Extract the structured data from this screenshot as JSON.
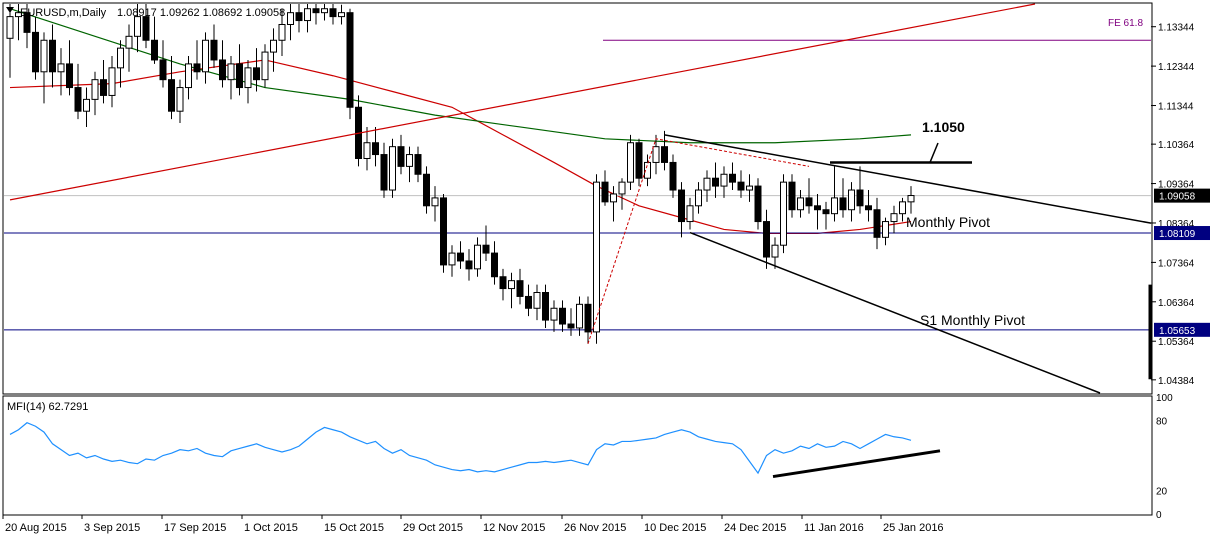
{
  "chart_data": {
    "type": "candlestick",
    "header": {
      "symbol_line": "EURUSD,m,Daily",
      "ohlc": "1.08917 1.09262 1.08692 1.09058"
    },
    "y_axis": {
      "range": [
        1.0405,
        1.1392
      ],
      "ticks": [
        {
          "value": 1.13344,
          "label": "1.13344"
        },
        {
          "value": 1.12344,
          "label": "1.12344"
        },
        {
          "value": 1.11344,
          "label": "1.11344"
        },
        {
          "value": 1.10364,
          "label": "1.10364"
        },
        {
          "value": 1.09364,
          "label": "1.09364"
        },
        {
          "value": 1.08364,
          "label": "1.08364"
        },
        {
          "value": 1.07364,
          "label": "1.07364"
        },
        {
          "value": 1.06364,
          "label": "1.06364"
        },
        {
          "value": 1.05364,
          "label": "1.05364"
        },
        {
          "value": 1.04384,
          "label": "1.04384"
        }
      ],
      "badges": [
        {
          "value": 1.09058,
          "label": "1.09058",
          "style": "current"
        },
        {
          "value": 1.08109,
          "label": "1.08109",
          "style": "level"
        },
        {
          "value": 1.05653,
          "label": "1.05653",
          "style": "level"
        }
      ]
    },
    "x_axis": {
      "labels": [
        "20 Aug 2015",
        "3 Sep 2015",
        "17 Sep 2015",
        "1 Oct 2015",
        "15 Oct 2015",
        "29 Oct 2015",
        "12 Nov 2015",
        "26 Nov 2015",
        "10 Dec 2015",
        "24 Dec 2015",
        "11 Jan 2016",
        "25 Jan 2016"
      ]
    },
    "candles": [
      [
        1.1305,
        1.1392,
        1.1205,
        1.136
      ],
      [
        1.136,
        1.1392,
        1.13,
        1.137
      ],
      [
        1.137,
        1.1392,
        1.128,
        1.132
      ],
      [
        1.132,
        1.136,
        1.12,
        1.122
      ],
      [
        1.122,
        1.132,
        1.114,
        1.13
      ],
      [
        1.13,
        1.134,
        1.118,
        1.122
      ],
      [
        1.122,
        1.128,
        1.116,
        1.124
      ],
      [
        1.124,
        1.13,
        1.116,
        1.118
      ],
      [
        1.118,
        1.124,
        1.11,
        1.112
      ],
      [
        1.112,
        1.118,
        1.108,
        1.115
      ],
      [
        1.115,
        1.122,
        1.111,
        1.12
      ],
      [
        1.12,
        1.125,
        1.114,
        1.116
      ],
      [
        1.116,
        1.126,
        1.113,
        1.123
      ],
      [
        1.123,
        1.13,
        1.118,
        1.128
      ],
      [
        1.128,
        1.134,
        1.122,
        1.131
      ],
      [
        1.131,
        1.1392,
        1.127,
        1.136
      ],
      [
        1.136,
        1.1392,
        1.128,
        1.13
      ],
      [
        1.13,
        1.136,
        1.124,
        1.125
      ],
      [
        1.125,
        1.13,
        1.118,
        1.12
      ],
      [
        1.12,
        1.126,
        1.11,
        1.112
      ],
      [
        1.112,
        1.12,
        1.109,
        1.118
      ],
      [
        1.118,
        1.126,
        1.115,
        1.124
      ],
      [
        1.124,
        1.13,
        1.12,
        1.122
      ],
      [
        1.122,
        1.132,
        1.119,
        1.13
      ],
      [
        1.13,
        1.134,
        1.123,
        1.125
      ],
      [
        1.125,
        1.13,
        1.118,
        1.12
      ],
      [
        1.12,
        1.126,
        1.115,
        1.124
      ],
      [
        1.124,
        1.129,
        1.116,
        1.118
      ],
      [
        1.118,
        1.125,
        1.114,
        1.123
      ],
      [
        1.123,
        1.128,
        1.117,
        1.12
      ],
      [
        1.12,
        1.129,
        1.118,
        1.127
      ],
      [
        1.127,
        1.133,
        1.122,
        1.13
      ],
      [
        1.13,
        1.138,
        1.126,
        1.134
      ],
      [
        1.134,
        1.1392,
        1.13,
        1.137
      ],
      [
        1.137,
        1.1392,
        1.132,
        1.135
      ],
      [
        1.135,
        1.1392,
        1.132,
        1.138
      ],
      [
        1.138,
        1.1392,
        1.134,
        1.137
      ],
      [
        1.137,
        1.1392,
        1.135,
        1.138
      ],
      [
        1.138,
        1.1392,
        1.134,
        1.136
      ],
      [
        1.136,
        1.139,
        1.134,
        1.137
      ],
      [
        1.137,
        1.138,
        1.11,
        1.113
      ],
      [
        1.113,
        1.116,
        1.098,
        1.1
      ],
      [
        1.1,
        1.108,
        1.097,
        1.104
      ],
      [
        1.104,
        1.108,
        1.098,
        1.101
      ],
      [
        1.101,
        1.104,
        1.09,
        1.092
      ],
      [
        1.092,
        1.105,
        1.09,
        1.103
      ],
      [
        1.103,
        1.106,
        1.096,
        1.098
      ],
      [
        1.098,
        1.103,
        1.094,
        1.101
      ],
      [
        1.101,
        1.103,
        1.094,
        1.096
      ],
      [
        1.096,
        1.098,
        1.086,
        1.088
      ],
      [
        1.088,
        1.093,
        1.084,
        1.09
      ],
      [
        1.09,
        1.091,
        1.071,
        1.073
      ],
      [
        1.073,
        1.078,
        1.07,
        1.076
      ],
      [
        1.076,
        1.079,
        1.072,
        1.074
      ],
      [
        1.074,
        1.077,
        1.069,
        1.072
      ],
      [
        1.072,
        1.08,
        1.07,
        1.078
      ],
      [
        1.078,
        1.083,
        1.074,
        1.076
      ],
      [
        1.076,
        1.079,
        1.068,
        1.07
      ],
      [
        1.07,
        1.072,
        1.064,
        1.067
      ],
      [
        1.067,
        1.071,
        1.062,
        1.069
      ],
      [
        1.069,
        1.072,
        1.063,
        1.065
      ],
      [
        1.065,
        1.068,
        1.06,
        1.062
      ],
      [
        1.062,
        1.068,
        1.059,
        1.066
      ],
      [
        1.066,
        1.068,
        1.057,
        1.059
      ],
      [
        1.059,
        1.064,
        1.056,
        1.062
      ],
      [
        1.062,
        1.064,
        1.056,
        1.058
      ],
      [
        1.058,
        1.062,
        1.055,
        1.057
      ],
      [
        1.057,
        1.065,
        1.055,
        1.063
      ],
      [
        1.063,
        1.065,
        1.053,
        1.056
      ],
      [
        1.056,
        1.096,
        1.053,
        1.094
      ],
      [
        1.094,
        1.097,
        1.088,
        1.089
      ],
      [
        1.089,
        1.093,
        1.084,
        1.091
      ],
      [
        1.091,
        1.095,
        1.087,
        1.094
      ],
      [
        1.094,
        1.106,
        1.092,
        1.104
      ],
      [
        1.104,
        1.105,
        1.093,
        1.095
      ],
      [
        1.095,
        1.101,
        1.093,
        1.099
      ],
      [
        1.099,
        1.106,
        1.096,
        1.103
      ],
      [
        1.103,
        1.107,
        1.097,
        1.099
      ],
      [
        1.099,
        1.101,
        1.09,
        1.092
      ],
      [
        1.092,
        1.094,
        1.08,
        1.084
      ],
      [
        1.084,
        1.09,
        1.082,
        1.088
      ],
      [
        1.088,
        1.094,
        1.086,
        1.092
      ],
      [
        1.092,
        1.097,
        1.089,
        1.095
      ],
      [
        1.095,
        1.099,
        1.09,
        1.093
      ],
      [
        1.093,
        1.098,
        1.09,
        1.096
      ],
      [
        1.096,
        1.099,
        1.092,
        1.094
      ],
      [
        1.094,
        1.097,
        1.09,
        1.092
      ],
      [
        1.092,
        1.096,
        1.089,
        1.093
      ],
      [
        1.093,
        1.095,
        1.082,
        1.084
      ],
      [
        1.084,
        1.087,
        1.072,
        1.075
      ],
      [
        1.075,
        1.08,
        1.072,
        1.078
      ],
      [
        1.078,
        1.096,
        1.076,
        1.094
      ],
      [
        1.094,
        1.096,
        1.085,
        1.087
      ],
      [
        1.087,
        1.092,
        1.085,
        1.09
      ],
      [
        1.09,
        1.095,
        1.086,
        1.088
      ],
      [
        1.088,
        1.091,
        1.082,
        1.087
      ],
      [
        1.087,
        1.089,
        1.082,
        1.086
      ],
      [
        1.086,
        1.098,
        1.084,
        1.09
      ],
      [
        1.09,
        1.095,
        1.085,
        1.087
      ],
      [
        1.087,
        1.094,
        1.084,
        1.092
      ],
      [
        1.092,
        1.098,
        1.086,
        1.088
      ],
      [
        1.088,
        1.092,
        1.084,
        1.087
      ],
      [
        1.087,
        1.09,
        1.077,
        1.08
      ],
      [
        1.08,
        1.085,
        1.078,
        1.084
      ],
      [
        1.084,
        1.088,
        1.081,
        1.086
      ],
      [
        1.086,
        1.09,
        1.084,
        1.089
      ],
      [
        1.089,
        1.093,
        1.086,
        1.0906
      ]
    ],
    "moving_averages": [
      {
        "color": "#cc0000",
        "values": [
          [
            0,
            1.118
          ],
          [
            12,
            1.119
          ],
          [
            20,
            1.122
          ],
          [
            30,
            1.125
          ],
          [
            38,
            1.121
          ],
          [
            45,
            1.117
          ],
          [
            52,
            1.113
          ],
          [
            58,
            1.106
          ],
          [
            64,
            1.099
          ],
          [
            69,
            1.093
          ],
          [
            74,
            1.088
          ],
          [
            79,
            1.085
          ],
          [
            84,
            1.082
          ],
          [
            89,
            1.081
          ],
          [
            95,
            1.081
          ],
          [
            100,
            1.082
          ],
          [
            106,
            1.084
          ]
        ]
      },
      {
        "color": "#006400",
        "values": [
          [
            0,
            1.138
          ],
          [
            10,
            1.131
          ],
          [
            20,
            1.124
          ],
          [
            30,
            1.118
          ],
          [
            40,
            1.115
          ],
          [
            50,
            1.111
          ],
          [
            60,
            1.108
          ],
          [
            70,
            1.105
          ],
          [
            80,
            1.104
          ],
          [
            90,
            1.104
          ],
          [
            100,
            1.105
          ],
          [
            106,
            1.106
          ]
        ]
      }
    ],
    "annotations": {
      "fe": {
        "label": "FE 61.8",
        "value": 1.13
      },
      "resistance": {
        "label": "1.1050"
      },
      "monthly_pivot": {
        "label": "Monthly Pivot",
        "value": 1.08109
      },
      "s1_pivot": {
        "label": "S1 Monthly Pivot",
        "value": 1.05653
      }
    },
    "indicator": {
      "label": "MFI(14) 62.7291",
      "range": [
        0,
        100
      ],
      "ticks": [
        {
          "value": 100,
          "label": "100"
        },
        {
          "value": 80,
          "label": "80"
        },
        {
          "value": 20,
          "label": "20"
        },
        {
          "value": 0,
          "label": "0"
        }
      ],
      "color": "#1e90ff",
      "values": [
        68,
        72,
        78,
        75,
        70,
        60,
        55,
        50,
        52,
        48,
        50,
        47,
        45,
        46,
        44,
        43,
        47,
        46,
        50,
        52,
        55,
        54,
        56,
        52,
        50,
        49,
        54,
        56,
        58,
        60,
        57,
        55,
        53,
        55,
        58,
        64,
        70,
        74,
        72,
        70,
        66,
        63,
        60,
        62,
        56,
        52,
        55,
        50,
        48,
        46,
        42,
        40,
        38,
        37,
        38,
        36,
        37,
        36,
        38,
        40,
        42,
        44,
        44,
        45,
        44,
        45,
        46,
        44,
        42,
        55,
        60,
        59,
        62,
        62,
        63,
        64,
        65,
        68,
        70,
        72,
        70,
        66,
        64,
        62,
        61,
        60,
        55,
        45,
        35,
        50,
        55,
        52,
        54,
        58,
        56,
        60,
        57,
        58,
        62,
        60,
        56,
        60,
        64,
        68,
        66,
        65,
        63
      ]
    }
  }
}
